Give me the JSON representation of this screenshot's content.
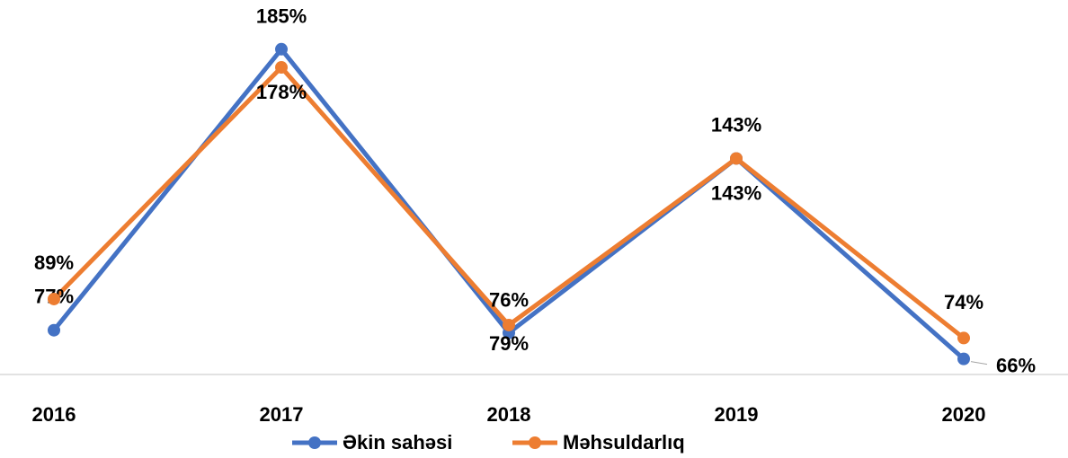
{
  "chart_data": {
    "type": "line",
    "categories": [
      "2016",
      "2017",
      "2018",
      "2019",
      "2020"
    ],
    "series": [
      {
        "name": "Əkin sahəsi",
        "color": "#4472c4",
        "values": [
          77,
          185,
          76,
          143,
          66
        ],
        "value_labels": [
          "77%",
          "185%",
          "76%",
          "143%",
          "66%"
        ]
      },
      {
        "name": "Məhsuldarlıq",
        "color": "#ed7d31",
        "values": [
          89,
          178,
          79,
          143,
          74
        ],
        "value_labels": [
          "89%",
          "178%",
          "79%",
          "143%",
          "74%"
        ]
      }
    ],
    "ylim": [
      60,
      197
    ]
  }
}
